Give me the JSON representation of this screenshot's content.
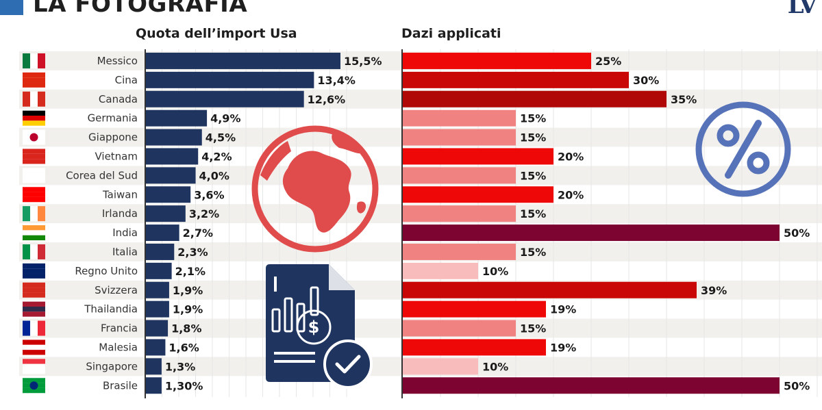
{
  "header": {
    "title": "LA FOTOGRAFIA",
    "logo": "LV"
  },
  "colors": {
    "import_bar": "#1f3560",
    "tariff_10": "#f9bcbc",
    "tariff_15": "#f08282",
    "tariff_19_25": "#ee0808",
    "tariff_30_39": "#c90707",
    "tariff_35": "#b00707",
    "tariff_50": "#7d0330",
    "globe": "#e04b4b",
    "percent_icon": "#5672b8",
    "document_icon": "#1f3560",
    "row_stripe": "#f2f0ec"
  },
  "icons": [
    "globe-icon",
    "document-chart-icon",
    "percent-icon"
  ],
  "chart_data": [
    {
      "type": "bar",
      "orientation": "horizontal",
      "title": "Quota dell’import Usa",
      "categories": [
        "Messico",
        "Cina",
        "Canada",
        "Germania",
        "Giappone",
        "Vietnam",
        "Corea del Sud",
        "Taiwan",
        "Irlanda",
        "India",
        "Italia",
        "Regno Unito",
        "Svizzera",
        "Thailandia",
        "Francia",
        "Malesia",
        "Singapore",
        "Brasile"
      ],
      "values": [
        15.5,
        13.4,
        12.6,
        4.9,
        4.5,
        4.2,
        4.0,
        3.6,
        3.2,
        2.7,
        2.3,
        2.1,
        1.9,
        1.9,
        1.8,
        1.6,
        1.3,
        1.3
      ],
      "value_labels": [
        "15,5%",
        "13,4%",
        "12,6%",
        "4,9%",
        "4,5%",
        "4,2%",
        "4,0%",
        "3,6%",
        "3,2%",
        "2,7%",
        "2,3%",
        "2,1%",
        "1,9%",
        "1,9%",
        "1,8%",
        "1,6%",
        "1,3%",
        "1,30%"
      ],
      "xlim": [
        0,
        20
      ]
    },
    {
      "type": "bar",
      "orientation": "horizontal",
      "title": "Dazi applicati",
      "categories": [
        "Messico",
        "Cina",
        "Canada",
        "Germania",
        "Giappone",
        "Vietnam",
        "Corea del Sud",
        "Taiwan",
        "Irlanda",
        "India",
        "Italia",
        "Regno Unito",
        "Svizzera",
        "Thailandia",
        "Francia",
        "Malesia",
        "Singapore",
        "Brasile"
      ],
      "values": [
        25,
        30,
        35,
        15,
        15,
        20,
        15,
        20,
        15,
        50,
        15,
        10,
        39,
        19,
        15,
        19,
        10,
        50
      ],
      "value_labels": [
        "25%",
        "30%",
        "35%",
        "15%",
        "15%",
        "20%",
        "15%",
        "20%",
        "15%",
        "50%",
        "15%",
        "10%",
        "39%",
        "19%",
        "15%",
        "19%",
        "10%",
        "50%"
      ],
      "xlim": [
        0,
        55
      ]
    }
  ]
}
